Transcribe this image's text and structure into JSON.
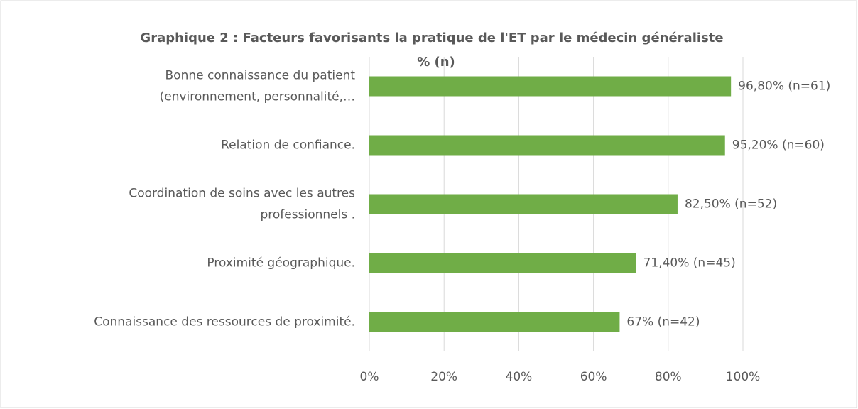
{
  "chart_data": {
    "type": "bar",
    "orientation": "horizontal",
    "title": "Graphique 2 : Facteurs favorisants la pratique de l'ET par le médecin généraliste",
    "subtitle": "% (n)",
    "categories": [
      [
        "Bonne connaissance du patient",
        "(environnement, personnalité,…"
      ],
      [
        "Relation de confiance."
      ],
      [
        "Coordination de soins avec les autres",
        "professionnels ."
      ],
      [
        "Proximité géographique."
      ],
      [
        "Connaissance des ressources de proximité."
      ]
    ],
    "values": [
      96.8,
      95.2,
      82.5,
      71.4,
      67
    ],
    "value_labels": [
      "96,80% (n=61)",
      "95,20% (n=60)",
      "82,50% (n=52)",
      "71,40% (n=45)",
      "67% (n=42)"
    ],
    "color": "#70ad47",
    "xlim": [
      0,
      100
    ],
    "xticks": [
      {
        "value": 0,
        "label": "0%"
      },
      {
        "value": 20,
        "label": "20%"
      },
      {
        "value": 40,
        "label": "40%"
      },
      {
        "value": 60,
        "label": "60%"
      },
      {
        "value": 80,
        "label": "80%"
      },
      {
        "value": 100,
        "label": "100%"
      }
    ],
    "grid": true
  }
}
